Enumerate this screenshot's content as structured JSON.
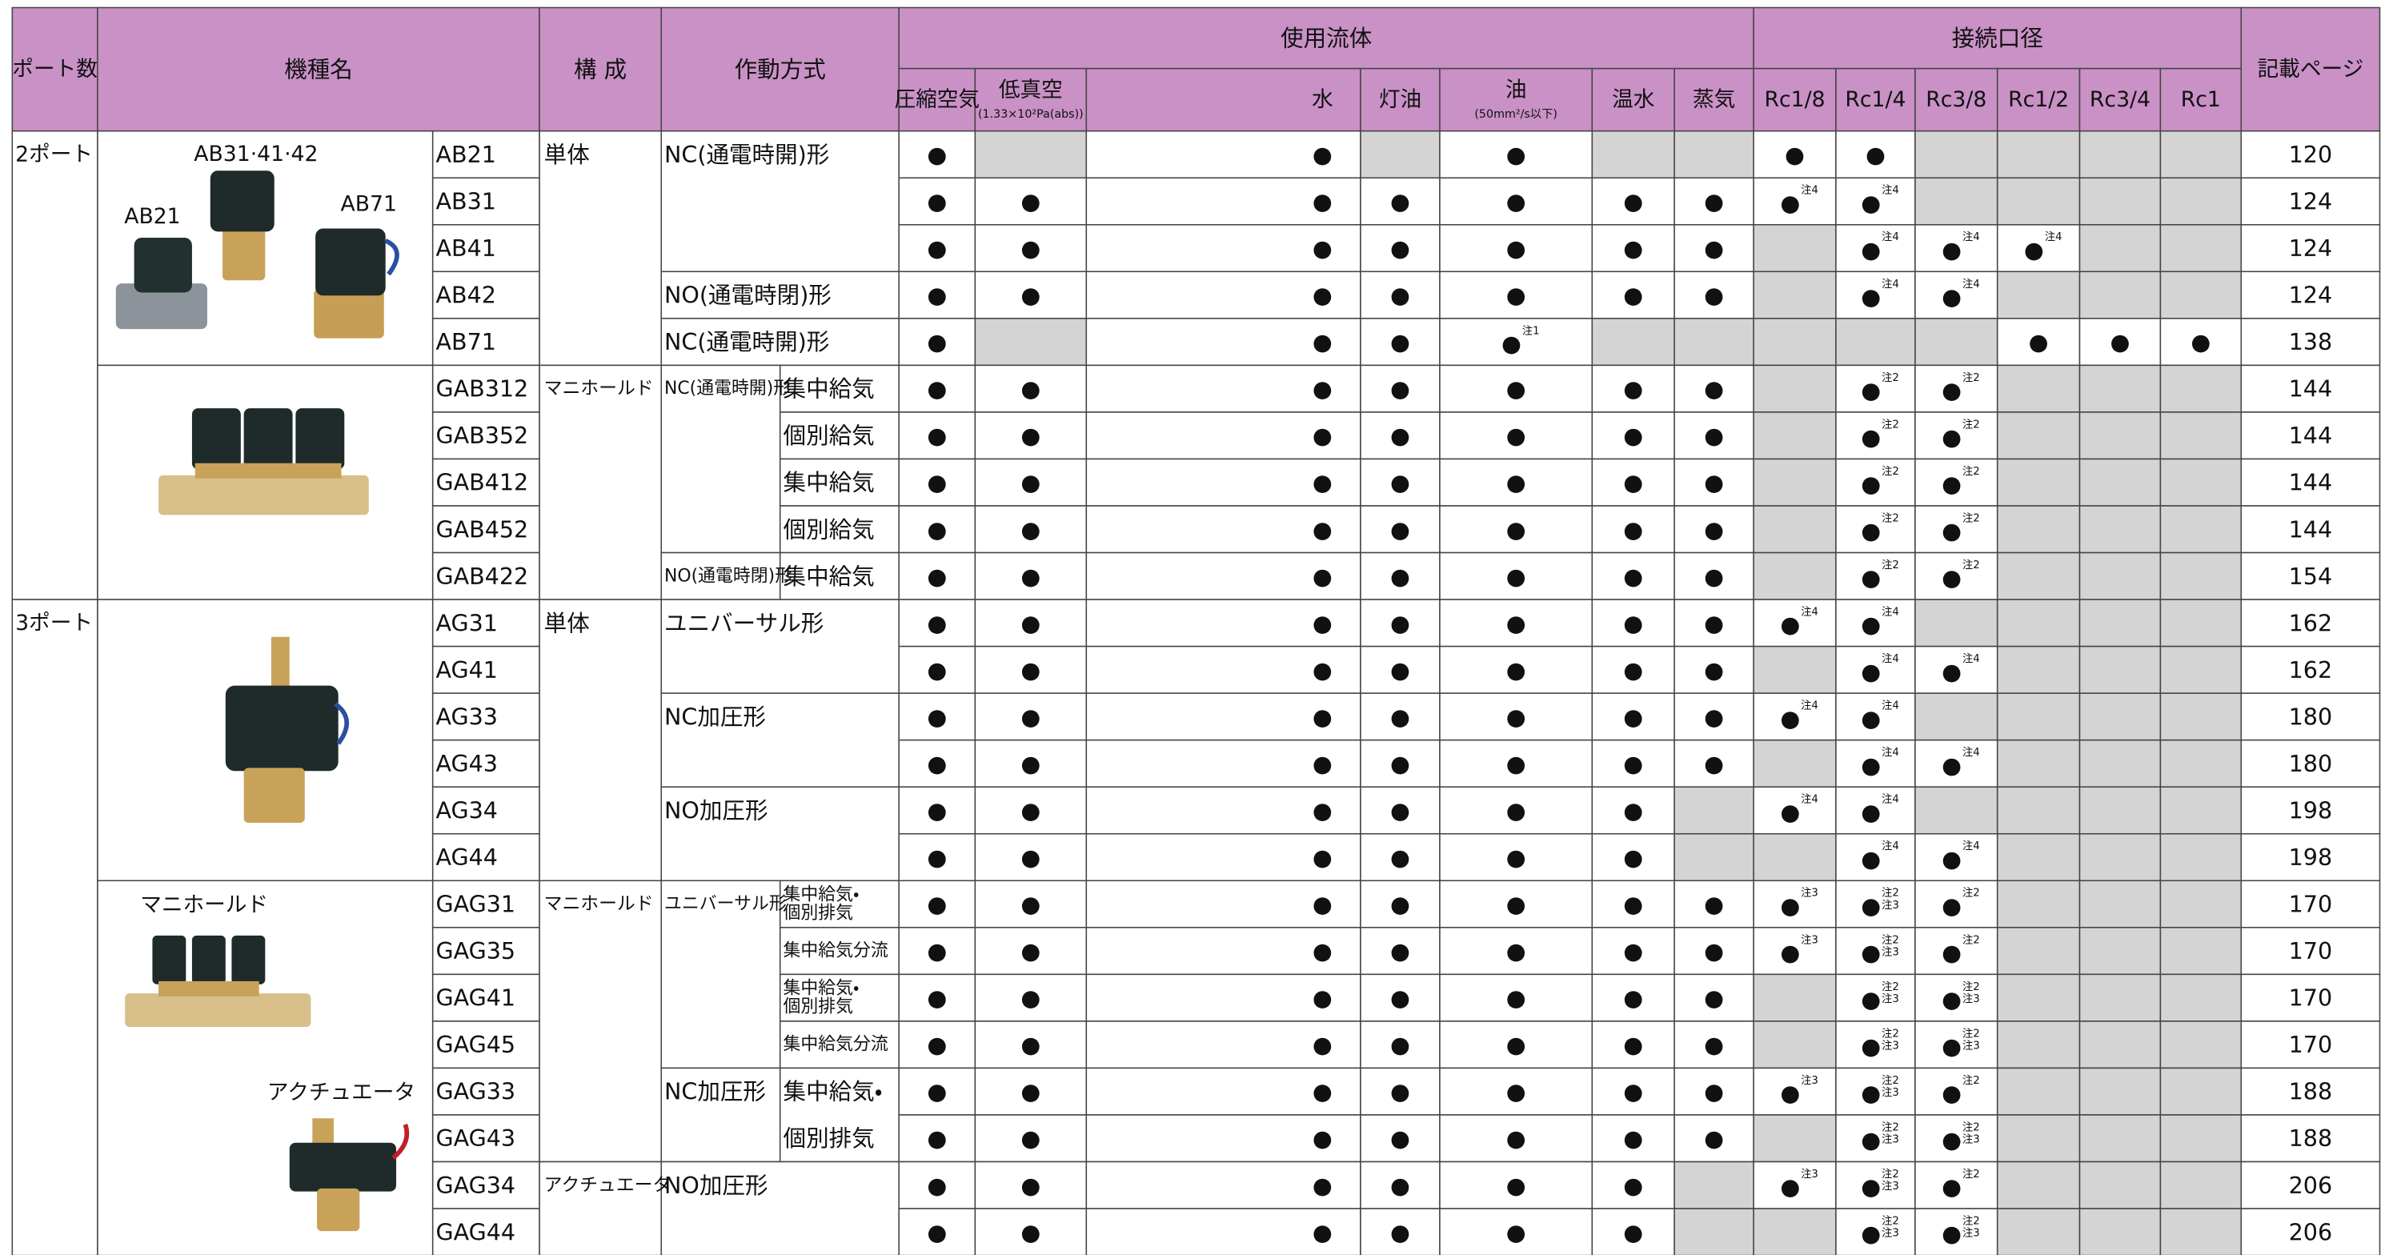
{
  "header": {
    "port": "ポート数",
    "model": "機種名",
    "config": "構 成",
    "operation": "作動方式",
    "fluid": "使用流体",
    "port_size": "接続口径",
    "page": "記載ページ",
    "fluids": [
      {
        "name": "圧縮空気"
      },
      {
        "name": "低真空",
        "note": "(1.33×10²Pa(abs))"
      },
      {
        "name": "水"
      },
      {
        "name": "灯油"
      },
      {
        "name": "油",
        "note": "(50mm²/s以下)"
      },
      {
        "name": "温水"
      },
      {
        "name": "蒸気"
      }
    ],
    "sizes": [
      "Rc1/8",
      "Rc1/4",
      "Rc3/8",
      "Rc1/2",
      "Rc3/4",
      "Rc1"
    ]
  },
  "ports": [
    "2ポート",
    "3ポート"
  ],
  "image_labels": [
    "AB31·41·42",
    "AB21",
    "AB71",
    "マニホールド",
    "アクチュエータ"
  ],
  "configs": [
    "単体",
    "マニホールド",
    "単体",
    "マニホールド",
    "アクチュエータ"
  ],
  "operations": [
    [
      "NC(通電時開)形"
    ],
    [
      "NO(通電時閉)形"
    ],
    [
      "NC(通電時開)形"
    ],
    [
      "NC(通電時開)形"
    ],
    [
      "集中給気"
    ],
    [
      "個別給気"
    ],
    [
      "集中給気"
    ],
    [
      "個別給気"
    ],
    [
      "NO(通電時閉)形"
    ],
    [
      "集中給気"
    ],
    [
      "ユニバーサル形"
    ],
    [
      "NC加圧形"
    ],
    [
      "NO加圧形"
    ],
    [
      "ユニバーサル形"
    ],
    [
      "集中給気・",
      "個別排気"
    ],
    [
      "集中給気分流"
    ],
    [
      "集中給気・",
      "個別排気"
    ],
    [
      "集中給気分流"
    ],
    [
      "NC加圧形"
    ],
    [
      "集中給気・",
      "個別排気"
    ],
    [
      "NO加圧形"
    ]
  ],
  "rows": [
    {
      "model": "AB21",
      "fluids": [
        "●",
        null,
        "●",
        null,
        "●",
        null,
        null
      ],
      "ports": [
        "●",
        "●",
        null,
        null,
        null,
        null
      ],
      "page": 120
    },
    {
      "model": "AB31",
      "fluids": [
        "●",
        "●",
        "●",
        "●",
        "●",
        "●",
        "●"
      ],
      "ports": [
        {
          "mark": "●",
          "notes": [
            "注4"
          ]
        },
        {
          "mark": "●",
          "notes": [
            "注4"
          ]
        },
        null,
        null,
        null,
        null
      ],
      "page": 124
    },
    {
      "model": "AB41",
      "fluids": [
        "●",
        "●",
        "●",
        "●",
        "●",
        "●",
        "●"
      ],
      "ports": [
        null,
        {
          "mark": "●",
          "notes": [
            "注4"
          ]
        },
        {
          "mark": "●",
          "notes": [
            "注4"
          ]
        },
        {
          "mark": "●",
          "notes": [
            "注4"
          ]
        },
        null,
        null
      ],
      "page": 124
    },
    {
      "model": "AB42",
      "fluids": [
        "●",
        "●",
        "●",
        "●",
        "●",
        "●",
        "●"
      ],
      "ports": [
        null,
        {
          "mark": "●",
          "notes": [
            "注4"
          ]
        },
        {
          "mark": "●",
          "notes": [
            "注4"
          ]
        },
        null,
        null,
        null
      ],
      "page": 124
    },
    {
      "model": "AB71",
      "fluids": [
        "●",
        null,
        "●",
        "●",
        {
          "mark": "●",
          "notes": [
            "注1"
          ]
        },
        null,
        null
      ],
      "ports": [
        null,
        null,
        null,
        "●",
        "●",
        "●"
      ],
      "page": 138
    },
    {
      "model": "GAB312",
      "fluids": [
        "●",
        "●",
        "●",
        "●",
        "●",
        "●",
        "●"
      ],
      "ports": [
        null,
        {
          "mark": "●",
          "notes": [
            "注2"
          ]
        },
        {
          "mark": "●",
          "notes": [
            "注2"
          ]
        },
        null,
        null,
        null
      ],
      "page": 144
    },
    {
      "model": "GAB352",
      "fluids": [
        "●",
        "●",
        "●",
        "●",
        "●",
        "●",
        "●"
      ],
      "ports": [
        null,
        {
          "mark": "●",
          "notes": [
            "注2"
          ]
        },
        {
          "mark": "●",
          "notes": [
            "注2"
          ]
        },
        null,
        null,
        null
      ],
      "page": 144
    },
    {
      "model": "GAB412",
      "fluids": [
        "●",
        "●",
        "●",
        "●",
        "●",
        "●",
        "●"
      ],
      "ports": [
        null,
        {
          "mark": "●",
          "notes": [
            "注2"
          ]
        },
        {
          "mark": "●",
          "notes": [
            "注2"
          ]
        },
        null,
        null,
        null
      ],
      "page": 144
    },
    {
      "model": "GAB452",
      "fluids": [
        "●",
        "●",
        "●",
        "●",
        "●",
        "●",
        "●"
      ],
      "ports": [
        null,
        {
          "mark": "●",
          "notes": [
            "注2"
          ]
        },
        {
          "mark": "●",
          "notes": [
            "注2"
          ]
        },
        null,
        null,
        null
      ],
      "page": 144
    },
    {
      "model": "GAB422",
      "fluids": [
        "●",
        "●",
        "●",
        "●",
        "●",
        "●",
        "●"
      ],
      "ports": [
        null,
        {
          "mark": "●",
          "notes": [
            "注2"
          ]
        },
        {
          "mark": "●",
          "notes": [
            "注2"
          ]
        },
        null,
        null,
        null
      ],
      "page": 154
    },
    {
      "model": "AG31",
      "fluids": [
        "●",
        "●",
        "●",
        "●",
        "●",
        "●",
        "●"
      ],
      "ports": [
        {
          "mark": "●",
          "notes": [
            "注4"
          ]
        },
        {
          "mark": "●",
          "notes": [
            "注4"
          ]
        },
        null,
        null,
        null,
        null
      ],
      "page": 162
    },
    {
      "model": "AG41",
      "fluids": [
        "●",
        "●",
        "●",
        "●",
        "●",
        "●",
        "●"
      ],
      "ports": [
        null,
        {
          "mark": "●",
          "notes": [
            "注4"
          ]
        },
        {
          "mark": "●",
          "notes": [
            "注4"
          ]
        },
        null,
        null,
        null
      ],
      "page": 162
    },
    {
      "model": "AG33",
      "fluids": [
        "●",
        "●",
        "●",
        "●",
        "●",
        "●",
        "●"
      ],
      "ports": [
        {
          "mark": "●",
          "notes": [
            "注4"
          ]
        },
        {
          "mark": "●",
          "notes": [
            "注4"
          ]
        },
        null,
        null,
        null,
        null
      ],
      "page": 180
    },
    {
      "model": "AG43",
      "fluids": [
        "●",
        "●",
        "●",
        "●",
        "●",
        "●",
        "●"
      ],
      "ports": [
        null,
        {
          "mark": "●",
          "notes": [
            "注4"
          ]
        },
        {
          "mark": "●",
          "notes": [
            "注4"
          ]
        },
        null,
        null,
        null
      ],
      "page": 180
    },
    {
      "model": "AG34",
      "fluids": [
        "●",
        "●",
        "●",
        "●",
        "●",
        "●",
        null
      ],
      "ports": [
        {
          "mark": "●",
          "notes": [
            "注4"
          ]
        },
        {
          "mark": "●",
          "notes": [
            "注4"
          ]
        },
        null,
        null,
        null,
        null
      ],
      "page": 198
    },
    {
      "model": "AG44",
      "fluids": [
        "●",
        "●",
        "●",
        "●",
        "●",
        "●",
        null
      ],
      "ports": [
        null,
        {
          "mark": "●",
          "notes": [
            "注4"
          ]
        },
        {
          "mark": "●",
          "notes": [
            "注4"
          ]
        },
        null,
        null,
        null
      ],
      "page": 198
    },
    {
      "model": "GAG31",
      "fluids": [
        "●",
        "●",
        "●",
        "●",
        "●",
        "●",
        "●"
      ],
      "ports": [
        {
          "mark": "●",
          "notes": [
            "注3"
          ]
        },
        {
          "mark": "●",
          "notes": [
            "注2",
            "注3"
          ]
        },
        {
          "mark": "●",
          "notes": [
            "注2"
          ]
        },
        null,
        null,
        null
      ],
      "page": 170
    },
    {
      "model": "GAG35",
      "fluids": [
        "●",
        "●",
        "●",
        "●",
        "●",
        "●",
        "●"
      ],
      "ports": [
        {
          "mark": "●",
          "notes": [
            "注3"
          ]
        },
        {
          "mark": "●",
          "notes": [
            "注2",
            "注3"
          ]
        },
        {
          "mark": "●",
          "notes": [
            "注2"
          ]
        },
        null,
        null,
        null
      ],
      "page": 170
    },
    {
      "model": "GAG41",
      "fluids": [
        "●",
        "●",
        "●",
        "●",
        "●",
        "●",
        "●"
      ],
      "ports": [
        null,
        {
          "mark": "●",
          "notes": [
            "注2",
            "注3"
          ]
        },
        {
          "mark": "●",
          "notes": [
            "注2",
            "注3"
          ]
        },
        null,
        null,
        null
      ],
      "page": 170
    },
    {
      "model": "GAG45",
      "fluids": [
        "●",
        "●",
        "●",
        "●",
        "●",
        "●",
        "●"
      ],
      "ports": [
        null,
        {
          "mark": "●",
          "notes": [
            "注2",
            "注3"
          ]
        },
        {
          "mark": "●",
          "notes": [
            "注2",
            "注3"
          ]
        },
        null,
        null,
        null
      ],
      "page": 170
    },
    {
      "model": "GAG33",
      "fluids": [
        "●",
        "●",
        "●",
        "●",
        "●",
        "●",
        "●"
      ],
      "ports": [
        {
          "mark": "●",
          "notes": [
            "注3"
          ]
        },
        {
          "mark": "●",
          "notes": [
            "注2",
            "注3"
          ]
        },
        {
          "mark": "●",
          "notes": [
            "注2"
          ]
        },
        null,
        null,
        null
      ],
      "page": 188
    },
    {
      "model": "GAG43",
      "fluids": [
        "●",
        "●",
        "●",
        "●",
        "●",
        "●",
        "●"
      ],
      "ports": [
        null,
        {
          "mark": "●",
          "notes": [
            "注2",
            "注3"
          ]
        },
        {
          "mark": "●",
          "notes": [
            "注2",
            "注3"
          ]
        },
        null,
        null,
        null
      ],
      "page": 188
    },
    {
      "model": "GAG34",
      "fluids": [
        "●",
        "●",
        "●",
        "●",
        "●",
        "●",
        null
      ],
      "ports": [
        {
          "mark": "●",
          "notes": [
            "注3"
          ]
        },
        {
          "mark": "●",
          "notes": [
            "注2",
            "注3"
          ]
        },
        {
          "mark": "●",
          "notes": [
            "注2"
          ]
        },
        null,
        null,
        null
      ],
      "page": 206
    },
    {
      "model": "GAG44",
      "fluids": [
        "●",
        "●",
        "●",
        "●",
        "●",
        "●",
        null
      ],
      "ports": [
        null,
        {
          "mark": "●",
          "notes": [
            "注2",
            "注3"
          ]
        },
        {
          "mark": "●",
          "notes": [
            "注2",
            "注3"
          ]
        },
        null,
        null,
        null
      ],
      "page": 206
    }
  ]
}
